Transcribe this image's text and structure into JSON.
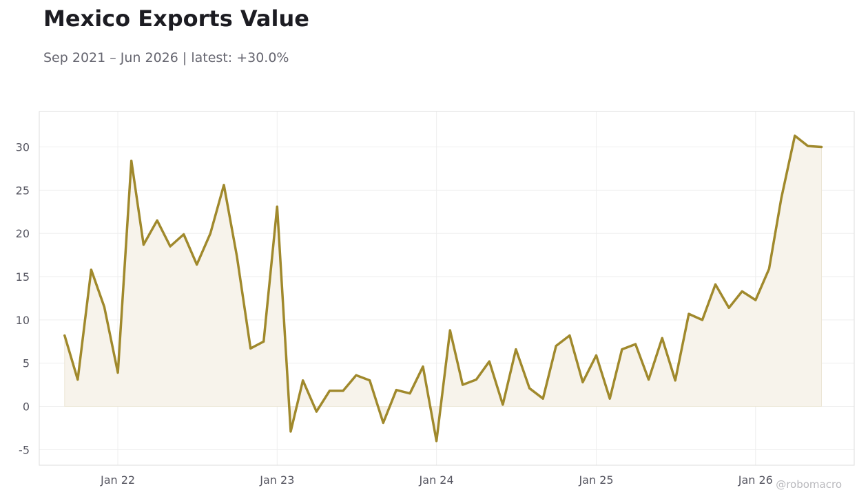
{
  "header": {
    "title": "Mexico Exports Value",
    "subtitle": "Sep 2021 – Jun 2026 | latest: +30.0%"
  },
  "watermark": "@robomacro",
  "colors": {
    "line": "#a0892c",
    "fill": "#f7f3eb",
    "grid": "#eeeeee",
    "frame": "#dddddd",
    "text": "#1c1c22",
    "muted": "#666670"
  },
  "chart_data": {
    "type": "area",
    "title": "Mexico Exports Value",
    "subtitle": "Sep 2021 – Jun 2026 | latest: +30.0%",
    "xlabel": "",
    "ylabel": "",
    "ylim": [
      -6.8,
      34.1
    ],
    "xlim": [
      "2021-07-05",
      "2026-08-15"
    ],
    "grid": true,
    "legend": "none",
    "yticks": [
      {
        "value": -5,
        "label": "-5"
      },
      {
        "value": 0,
        "label": "0"
      },
      {
        "value": 5,
        "label": "5"
      },
      {
        "value": 10,
        "label": "10"
      },
      {
        "value": 15,
        "label": "15"
      },
      {
        "value": 20,
        "label": "20"
      },
      {
        "value": 25,
        "label": "25"
      },
      {
        "value": 30,
        "label": "30"
      }
    ],
    "xticks": [
      {
        "value": "2022-01-01",
        "label": "Jan 22"
      },
      {
        "value": "2023-01-01",
        "label": "Jan 23"
      },
      {
        "value": "2024-01-01",
        "label": "Jan 24"
      },
      {
        "value": "2025-01-01",
        "label": "Jan 25"
      },
      {
        "value": "2026-01-01",
        "label": "Jan 26"
      }
    ],
    "x": [
      "2021-09",
      "2021-10",
      "2021-11",
      "2021-12",
      "2022-01",
      "2022-02",
      "2022-03",
      "2022-04",
      "2022-05",
      "2022-06",
      "2022-07",
      "2022-08",
      "2022-09",
      "2022-10",
      "2022-11",
      "2022-12",
      "2023-01",
      "2023-02",
      "2023-03",
      "2023-04",
      "2023-05",
      "2023-06",
      "2023-07",
      "2023-08",
      "2023-09",
      "2023-10",
      "2023-11",
      "2023-12",
      "2024-01",
      "2024-02",
      "2024-03",
      "2024-04",
      "2024-05",
      "2024-06",
      "2024-07",
      "2024-08",
      "2024-09",
      "2024-10",
      "2024-11",
      "2024-12",
      "2025-01",
      "2025-02",
      "2025-03",
      "2025-04",
      "2025-05",
      "2025-06",
      "2025-07",
      "2025-08",
      "2025-09",
      "2025-10",
      "2025-11",
      "2025-12",
      "2026-01",
      "2026-02",
      "2026-03",
      "2026-04",
      "2026-05",
      "2026-06"
    ],
    "series": [
      {
        "values": [
          8.2,
          3.1,
          15.8,
          11.5,
          3.9,
          28.4,
          18.7,
          21.5,
          18.5,
          19.9,
          16.4,
          20.0,
          25.6,
          17.3,
          6.7,
          7.5,
          23.1,
          -2.9,
          3.0,
          -0.6,
          1.8,
          1.8,
          3.6,
          3.0,
          -1.9,
          1.9,
          1.5,
          4.6,
          -4.0,
          8.8,
          2.5,
          3.1,
          5.2,
          0.2,
          6.6,
          2.1,
          0.9,
          7.0,
          8.2,
          2.8,
          5.9,
          0.9,
          6.6,
          7.2,
          3.1,
          7.9,
          3.0,
          10.7,
          10.0,
          14.1,
          11.4,
          13.3,
          12.3,
          15.9,
          24.1,
          31.3,
          30.1,
          30.0
        ]
      }
    ]
  }
}
